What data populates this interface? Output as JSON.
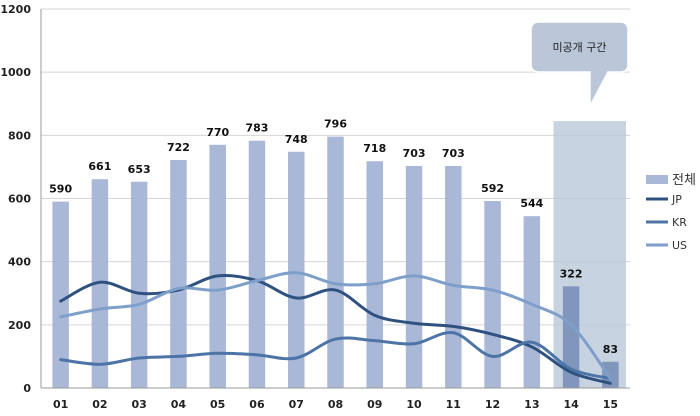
{
  "chart_data": {
    "type": "bar",
    "categories": [
      "01",
      "02",
      "03",
      "04",
      "05",
      "06",
      "07",
      "08",
      "09",
      "10",
      "11",
      "12",
      "13",
      "14",
      "15"
    ],
    "ylim": [
      0,
      1200
    ],
    "yticks": [
      0,
      200,
      400,
      600,
      800,
      1000,
      1200
    ],
    "grid": true,
    "legend_position": "right",
    "series": [
      {
        "name": "전체",
        "kind": "bar",
        "color": "#aab8d8",
        "values": [
          590,
          661,
          653,
          722,
          770,
          783,
          748,
          796,
          718,
          703,
          703,
          592,
          544,
          322,
          83
        ]
      },
      {
        "name": "JP",
        "kind": "line",
        "color": "#2e5180",
        "values": [
          275,
          335,
          300,
          310,
          355,
          340,
          285,
          310,
          230,
          205,
          195,
          170,
          130,
          50,
          15
        ]
      },
      {
        "name": "KR",
        "kind": "line",
        "color": "#4d74a6",
        "values": [
          90,
          75,
          95,
          100,
          110,
          105,
          95,
          155,
          150,
          140,
          175,
          100,
          145,
          60,
          30
        ]
      },
      {
        "name": "US",
        "kind": "line",
        "color": "#7f9fcb",
        "values": [
          225,
          250,
          265,
          315,
          310,
          340,
          365,
          330,
          330,
          355,
          325,
          310,
          265,
          200,
          30
        ]
      }
    ],
    "annotation": {
      "text": "미공개 구간",
      "covers_categories": [
        "14",
        "15"
      ]
    }
  }
}
